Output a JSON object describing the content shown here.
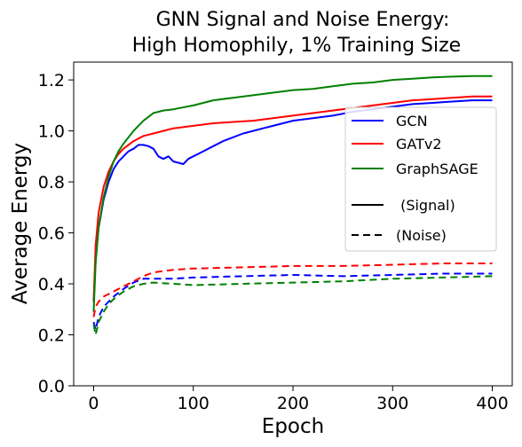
{
  "chart_data": {
    "type": "line",
    "title": "GNN Signal and Noise Energy:",
    "subtitle": "High Homophily, 1% Training Size",
    "xlabel": "Epoch",
    "ylabel": "Average Energy",
    "xlim": [
      -20,
      420
    ],
    "ylim": [
      0.0,
      1.27
    ],
    "xticks": [
      0,
      100,
      200,
      300,
      400
    ],
    "yticks": [
      0.0,
      0.2,
      0.4,
      0.6,
      0.8,
      1.0,
      1.2
    ],
    "xtick_labels": [
      "0",
      "100",
      "200",
      "300",
      "400"
    ],
    "ytick_labels": [
      "0.0",
      "0.2",
      "0.4",
      "0.6",
      "0.8",
      "1.0",
      "1.2"
    ],
    "grid": false,
    "legend_position": "upper-right",
    "series": [
      {
        "name": "GCN",
        "color": "#0000ff",
        "kind": "signal",
        "x": [
          0,
          2,
          5,
          10,
          15,
          20,
          25,
          30,
          35,
          40,
          45,
          50,
          55,
          60,
          65,
          70,
          75,
          80,
          85,
          90,
          95,
          100,
          110,
          120,
          130,
          140,
          150,
          160,
          170,
          180,
          190,
          200,
          220,
          240,
          260,
          280,
          300,
          320,
          340,
          360,
          380,
          400
        ],
        "y": [
          0.33,
          0.5,
          0.62,
          0.73,
          0.8,
          0.85,
          0.88,
          0.9,
          0.92,
          0.93,
          0.945,
          0.945,
          0.94,
          0.93,
          0.9,
          0.89,
          0.9,
          0.88,
          0.875,
          0.87,
          0.89,
          0.9,
          0.92,
          0.94,
          0.96,
          0.975,
          0.99,
          1.0,
          1.01,
          1.02,
          1.03,
          1.04,
          1.05,
          1.06,
          1.075,
          1.085,
          1.095,
          1.105,
          1.11,
          1.115,
          1.12,
          1.12
        ]
      },
      {
        "name": "GATv2",
        "color": "#ff0000",
        "kind": "signal",
        "x": [
          0,
          2,
          5,
          10,
          15,
          20,
          25,
          30,
          40,
          50,
          60,
          70,
          80,
          100,
          120,
          140,
          160,
          180,
          200,
          220,
          240,
          260,
          280,
          300,
          320,
          340,
          360,
          380,
          400
        ],
        "y": [
          0.33,
          0.55,
          0.68,
          0.78,
          0.84,
          0.88,
          0.91,
          0.93,
          0.96,
          0.98,
          0.99,
          1.0,
          1.01,
          1.02,
          1.03,
          1.035,
          1.04,
          1.05,
          1.06,
          1.07,
          1.08,
          1.09,
          1.1,
          1.11,
          1.12,
          1.125,
          1.13,
          1.135,
          1.135
        ]
      },
      {
        "name": "GraphSAGE",
        "color": "#008000",
        "kind": "signal",
        "x": [
          0,
          2,
          5,
          10,
          15,
          20,
          25,
          30,
          40,
          50,
          60,
          70,
          80,
          100,
          120,
          140,
          160,
          180,
          200,
          220,
          240,
          260,
          280,
          300,
          320,
          340,
          360,
          380,
          400
        ],
        "y": [
          0.29,
          0.48,
          0.62,
          0.74,
          0.82,
          0.88,
          0.92,
          0.95,
          1.0,
          1.04,
          1.07,
          1.08,
          1.085,
          1.1,
          1.12,
          1.13,
          1.14,
          1.15,
          1.16,
          1.165,
          1.175,
          1.185,
          1.19,
          1.2,
          1.205,
          1.21,
          1.213,
          1.215,
          1.215
        ]
      },
      {
        "name": "GCN (Noise)",
        "color": "#0000ff",
        "kind": "noise",
        "x": [
          0,
          2,
          5,
          10,
          15,
          20,
          30,
          40,
          50,
          60,
          80,
          100,
          150,
          200,
          250,
          300,
          350,
          400
        ],
        "y": [
          0.25,
          0.22,
          0.27,
          0.31,
          0.33,
          0.35,
          0.38,
          0.405,
          0.42,
          0.42,
          0.42,
          0.425,
          0.43,
          0.435,
          0.43,
          0.435,
          0.44,
          0.44
        ]
      },
      {
        "name": "GATv2 (Noise)",
        "color": "#ff0000",
        "kind": "noise",
        "x": [
          0,
          2,
          5,
          10,
          20,
          30,
          40,
          50,
          60,
          80,
          100,
          150,
          200,
          250,
          300,
          350,
          400
        ],
        "y": [
          0.27,
          0.31,
          0.33,
          0.35,
          0.37,
          0.39,
          0.41,
          0.43,
          0.445,
          0.455,
          0.46,
          0.465,
          0.47,
          0.47,
          0.475,
          0.48,
          0.48
        ]
      },
      {
        "name": "GraphSAGE (Noise)",
        "color": "#008000",
        "kind": "noise",
        "x": [
          0,
          2,
          5,
          10,
          15,
          20,
          30,
          40,
          50,
          60,
          80,
          100,
          150,
          200,
          250,
          300,
          350,
          400
        ],
        "y": [
          0.24,
          0.2,
          0.25,
          0.29,
          0.32,
          0.34,
          0.37,
          0.39,
          0.4,
          0.405,
          0.4,
          0.395,
          0.4,
          0.405,
          0.41,
          0.42,
          0.425,
          0.43
        ]
      }
    ],
    "legend": [
      {
        "label": "GCN",
        "color": "#0000ff",
        "style": "solid"
      },
      {
        "label": "GATv2",
        "color": "#ff0000",
        "style": "solid"
      },
      {
        "label": "GraphSAGE",
        "color": "#008000",
        "style": "solid"
      },
      {
        "label": " (Signal)",
        "color": "#000000",
        "style": "solid"
      },
      {
        "label": "(Noise)",
        "color": "#000000",
        "style": "dashed"
      }
    ]
  }
}
